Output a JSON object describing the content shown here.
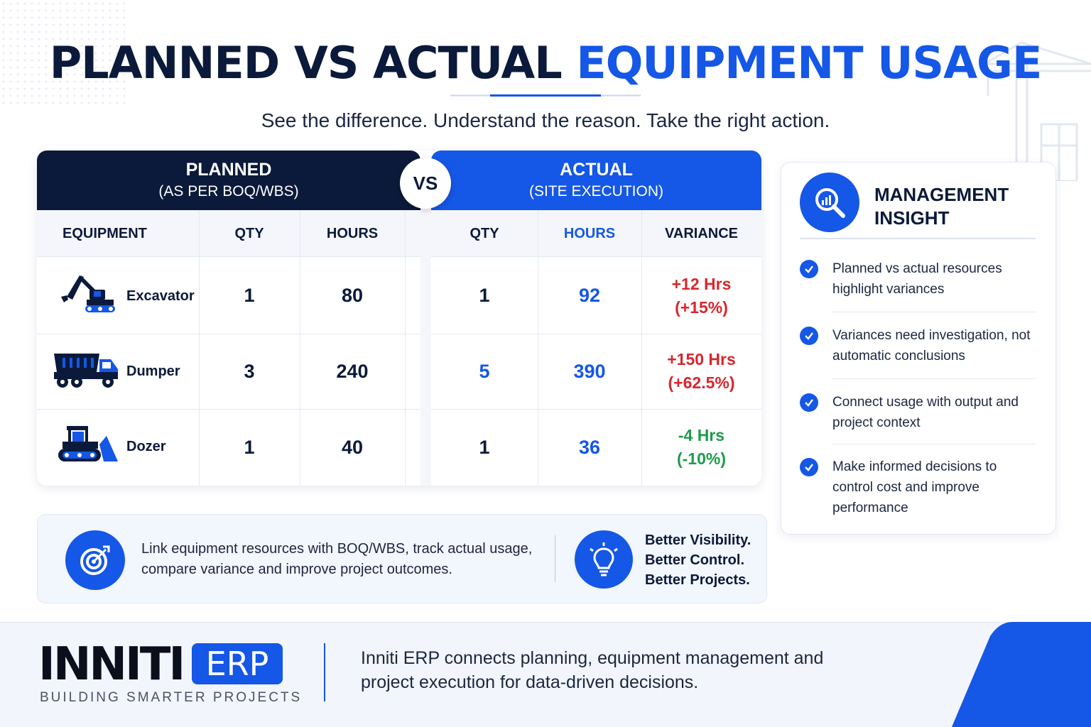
{
  "header": {
    "title_part1": "PLANNED VS ACTUAL",
    "title_part2": "EQUIPMENT USAGE",
    "subtitle": "See the difference. Understand the reason. Take the right action."
  },
  "table": {
    "planned_header": {
      "title": "PLANNED",
      "subtitle": "(AS PER BOQ/WBS)"
    },
    "actual_header": {
      "title": "ACTUAL",
      "subtitle": "(SITE EXECUTION)"
    },
    "vs_label": "VS",
    "columns": {
      "equipment": "EQUIPMENT",
      "planned_qty": "QTY",
      "planned_hours": "HOURS",
      "actual_qty": "QTY",
      "actual_hours": "HOURS",
      "variance": "VARIANCE"
    },
    "rows": [
      {
        "name": "Excavator",
        "icon": "excavator-icon",
        "planned_qty": "1",
        "planned_hours": "80",
        "actual_qty": "1",
        "actual_hours": "92",
        "variance_hrs": "+12 Hrs",
        "variance_pct": "(+15%)",
        "trend": "up"
      },
      {
        "name": "Dumper",
        "icon": "dumper-truck-icon",
        "planned_qty": "3",
        "planned_hours": "240",
        "actual_qty": "5",
        "actual_hours": "390",
        "variance_hrs": "+150 Hrs",
        "variance_pct": "(+62.5%)",
        "trend": "up"
      },
      {
        "name": "Dozer",
        "icon": "dozer-icon",
        "planned_qty": "1",
        "planned_hours": "40",
        "actual_qty": "1",
        "actual_hours": "36",
        "variance_hrs": "-4 Hrs",
        "variance_pct": "(-10%)",
        "trend": "down"
      }
    ]
  },
  "insight": {
    "icon": "analytics-magnifier-icon",
    "title": "MANAGEMENT INSIGHT",
    "items": [
      "Planned vs actual resources highlight variances",
      "Variances need investigation, not automatic conclusions",
      "Connect usage with output and project context",
      "Make informed decisions to control cost and improve performance"
    ]
  },
  "info": {
    "icon": "target-icon",
    "text": "Link equipment resources with BOQ/WBS, track actual usage, compare variance and improve project outcomes.",
    "bulb_icon": "lightbulb-icon",
    "better": [
      "Better Visibility.",
      "Better Control.",
      "Better Projects."
    ]
  },
  "footer": {
    "logo_text": "INNITI",
    "logo_badge": "ERP",
    "tagline": "BUILDING SMARTER PROJECTS",
    "text": "Inniti ERP connects planning, equipment management and project execution for data-driven decisions."
  },
  "colors": {
    "navy": "#0b1a3a",
    "accent_blue": "#1557e6",
    "variance_up": "#d8262c",
    "variance_down": "#1e9b4b"
  }
}
